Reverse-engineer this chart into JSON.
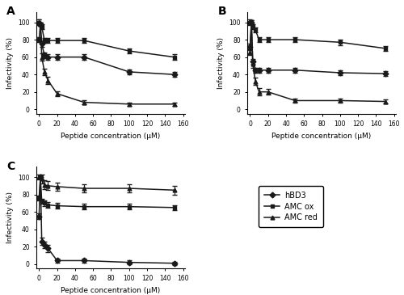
{
  "x": [
    0,
    1.5,
    3,
    6,
    10,
    20,
    50,
    100,
    150
  ],
  "panel_A": {
    "hBD3": [
      80,
      98,
      75,
      62,
      60,
      60,
      60,
      43,
      40
    ],
    "AMC_ox": [
      100,
      98,
      95,
      79,
      79,
      79,
      79,
      67,
      60
    ],
    "AMC_red": [
      100,
      98,
      60,
      43,
      33,
      18,
      8,
      6,
      6
    ],
    "hBD3_err": [
      3,
      2,
      3,
      3,
      3,
      3,
      3,
      3,
      3
    ],
    "AMC_ox_err": [
      3,
      2,
      3,
      3,
      3,
      3,
      3,
      3,
      3
    ],
    "AMC_red_err": [
      3,
      2,
      4,
      4,
      4,
      3,
      2,
      2,
      2
    ]
  },
  "panel_B": {
    "hBD3": [
      72,
      100,
      55,
      45,
      45,
      45,
      45,
      42,
      41
    ],
    "AMC_ox": [
      100,
      100,
      95,
      91,
      80,
      80,
      80,
      77,
      70
    ],
    "AMC_red": [
      65,
      100,
      52,
      32,
      20,
      20,
      10,
      10,
      9
    ],
    "hBD3_err": [
      3,
      2,
      3,
      3,
      3,
      3,
      3,
      3,
      3
    ],
    "AMC_ox_err": [
      3,
      2,
      3,
      3,
      3,
      3,
      3,
      3,
      3
    ],
    "AMC_red_err": [
      3,
      2,
      4,
      4,
      4,
      3,
      2,
      2,
      2
    ]
  },
  "panel_C": {
    "hBD3": [
      55,
      100,
      26,
      22,
      18,
      4,
      4,
      2,
      1
    ],
    "AMC_ox": [
      76,
      100,
      72,
      70,
      68,
      67,
      66,
      66,
      65
    ],
    "AMC_red": [
      100,
      100,
      98,
      91,
      90,
      89,
      87,
      87,
      85
    ],
    "hBD3_err": [
      3,
      2,
      4,
      4,
      4,
      2,
      2,
      2,
      2
    ],
    "AMC_ox_err": [
      3,
      2,
      3,
      3,
      3,
      3,
      3,
      3,
      3
    ],
    "AMC_red_err": [
      3,
      2,
      5,
      5,
      5,
      5,
      5,
      5,
      5
    ]
  },
  "xticks": [
    0,
    20,
    40,
    60,
    80,
    100,
    120,
    140,
    160
  ],
  "yticks": [
    0,
    20,
    40,
    60,
    80,
    100
  ],
  "xlabel": "Peptide concentration (μM)",
  "ylabel": "Infectivity (%)",
  "legend_labels": [
    "hBD3",
    "AMC ox",
    "AMC red"
  ],
  "line_color": "#1a1a1a",
  "marker_hBD3": "D",
  "marker_AMC_ox": "s",
  "marker_AMC_red": "^",
  "markersize": 3.5,
  "linewidth": 1.1,
  "capsize": 2,
  "elinewidth": 0.8
}
